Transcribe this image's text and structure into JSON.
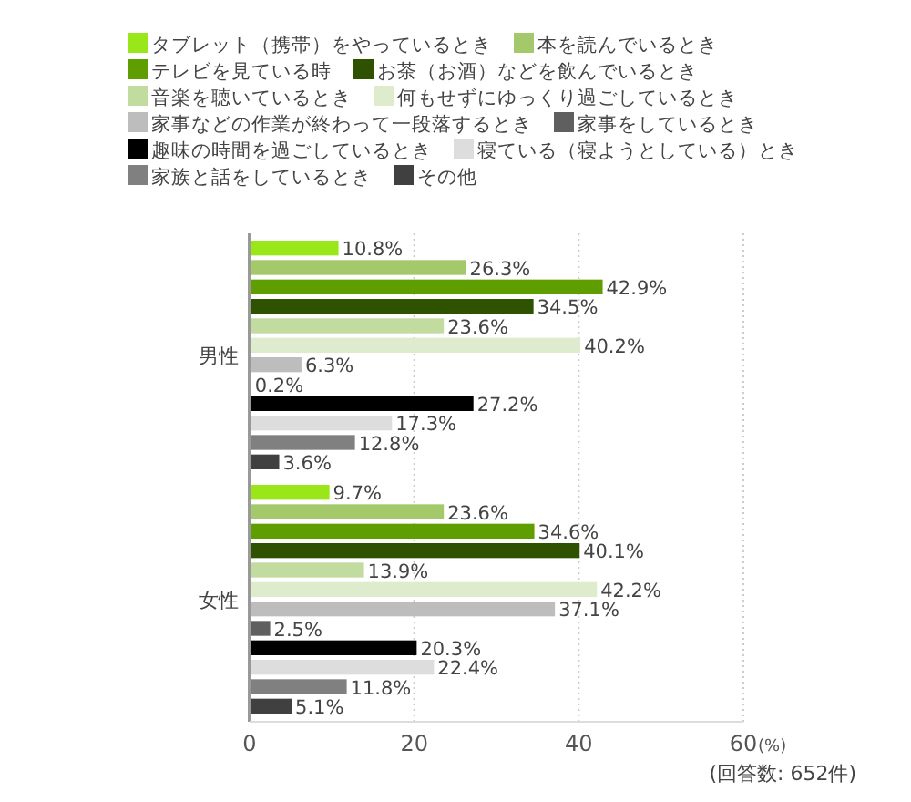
{
  "chart_data": {
    "type": "bar",
    "orientation": "horizontal",
    "categories": [
      "男性",
      "女性"
    ],
    "series": [
      {
        "name": "タブレット（携帯）をやっているとき",
        "color": "#99e619",
        "values": [
          10.8,
          9.7
        ],
        "value_labels": [
          "10.8%",
          "9.7%"
        ]
      },
      {
        "name": "本を読んでいるとき",
        "color": "#a3c96b",
        "values": [
          26.3,
          23.6
        ],
        "value_labels": [
          "26.3%",
          "23.6%"
        ]
      },
      {
        "name": "テレビを見ている時",
        "color": "#5f9e00",
        "values": [
          42.9,
          34.6
        ],
        "value_labels": [
          "42.9%",
          "34.6%"
        ]
      },
      {
        "name": "お茶（お酒）などを飲んでいるとき",
        "color": "#2f5200",
        "values": [
          34.5,
          40.1
        ],
        "value_labels": [
          "34.5%",
          "40.1%"
        ]
      },
      {
        "name": "音楽を聴いているとき",
        "color": "#c2dca0",
        "values": [
          23.6,
          13.9
        ],
        "value_labels": [
          "23.6%",
          "13.9%"
        ]
      },
      {
        "name": "何もせずにゆっくり過ごしているとき",
        "color": "#deebcc",
        "values": [
          40.2,
          42.2
        ],
        "value_labels": [
          "40.2%",
          "42.2%"
        ]
      },
      {
        "name": "家事などの作業が終わって一段落するとき",
        "color": "#bdbdbd",
        "values": [
          6.3,
          37.1
        ],
        "value_labels": [
          "6.3%",
          "37.1%"
        ]
      },
      {
        "name": "家事をしているとき",
        "color": "#5f5f5f",
        "values": [
          0.2,
          2.5
        ],
        "value_labels": [
          "0.2%",
          "2.5%"
        ]
      },
      {
        "name": "趣味の時間を過ごしているとき",
        "color": "#000000",
        "values": [
          27.2,
          20.3
        ],
        "value_labels": [
          "27.2%",
          "20.3%"
        ]
      },
      {
        "name": "寝ている（寝ようとしている）とき",
        "color": "#dddddd",
        "values": [
          17.3,
          22.4
        ],
        "value_labels": [
          "17.3%",
          "22.4%"
        ]
      },
      {
        "name": "家族と話をしているとき",
        "color": "#808080",
        "values": [
          12.8,
          11.8
        ],
        "value_labels": [
          "12.8%",
          "11.8%"
        ]
      },
      {
        "name": "その他",
        "color": "#404040",
        "values": [
          3.6,
          5.1
        ],
        "value_labels": [
          "3.6%",
          "5.1%"
        ]
      }
    ],
    "xlim": [
      0,
      60
    ],
    "xticks": [
      0,
      20,
      40,
      60
    ],
    "xlabel": "(%)",
    "grid": "x",
    "legend": "top",
    "annotations": [
      "(回答数: 652件)"
    ]
  }
}
